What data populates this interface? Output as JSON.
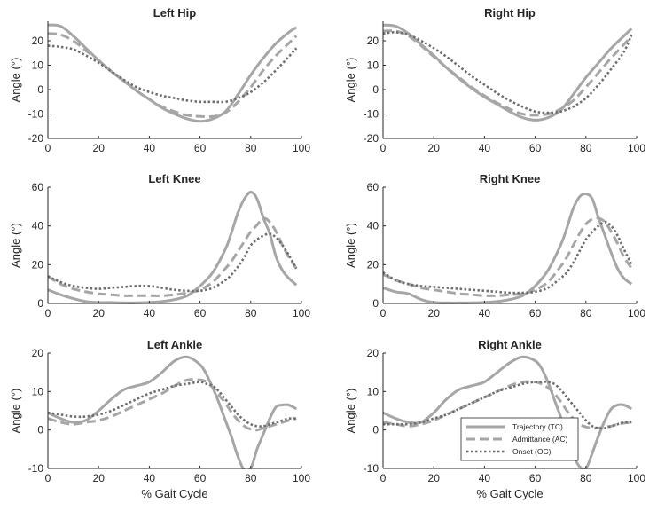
{
  "chart_data": [
    {
      "type": "line",
      "title": "Left Hip",
      "xlabel": "",
      "ylabel": "Angle (°)",
      "xlim": [
        0,
        100
      ],
      "ylim": [
        -20,
        28
      ],
      "xticks": [
        0,
        20,
        40,
        60,
        80,
        100
      ],
      "yticks": [
        -20,
        -10,
        0,
        10,
        20
      ],
      "x": [
        0,
        5,
        10,
        15,
        20,
        25,
        30,
        35,
        40,
        45,
        50,
        55,
        60,
        65,
        70,
        75,
        80,
        85,
        90,
        95,
        98
      ],
      "series": [
        {
          "name": "Trajectory (TC)",
          "values": [
            26.5,
            26,
            22,
            17,
            12,
            7.5,
            3.5,
            -0.5,
            -4,
            -7.5,
            -10,
            -12,
            -13,
            -12,
            -9,
            -2,
            6,
            13,
            19,
            23.5,
            25.5
          ]
        },
        {
          "name": "Admittance (AC)",
          "values": [
            23,
            22.5,
            20,
            16,
            12,
            7.5,
            3.5,
            -0.5,
            -4,
            -7,
            -9,
            -10.5,
            -11,
            -11,
            -9.5,
            -5,
            1,
            8,
            14,
            19,
            22
          ]
        },
        {
          "name": "Onset (OC)",
          "values": [
            18,
            17.5,
            16.5,
            14,
            11,
            7.5,
            4,
            1,
            -1,
            -2.5,
            -3.5,
            -4.5,
            -5,
            -5,
            -5,
            -3.5,
            -1,
            3,
            8,
            13.5,
            17
          ]
        }
      ]
    },
    {
      "type": "line",
      "title": "Right Hip",
      "xlabel": "",
      "ylabel": "Angle (°)",
      "xlim": [
        0,
        100
      ],
      "ylim": [
        -20,
        28
      ],
      "xticks": [
        0,
        20,
        40,
        60,
        80,
        100
      ],
      "yticks": [
        -20,
        -10,
        0,
        10,
        20
      ],
      "x": [
        0,
        5,
        10,
        15,
        20,
        25,
        30,
        35,
        40,
        45,
        50,
        55,
        60,
        65,
        70,
        75,
        80,
        85,
        90,
        95,
        98
      ],
      "series": [
        {
          "name": "Trajectory (TC)",
          "values": [
            26.5,
            26,
            23,
            18.5,
            14,
            9,
            4.5,
            0.5,
            -3,
            -6,
            -9,
            -11.5,
            -12.5,
            -11.5,
            -8.5,
            -2,
            5,
            11,
            17,
            22,
            25
          ]
        },
        {
          "name": "Admittance (AC)",
          "values": [
            24,
            24,
            22,
            18,
            13.5,
            9,
            5,
            1,
            -2.5,
            -5.5,
            -8,
            -10,
            -10.5,
            -10,
            -8,
            -4.5,
            1,
            7,
            13,
            18.5,
            22
          ]
        },
        {
          "name": "Onset (OC)",
          "values": [
            23,
            23.5,
            22.5,
            20,
            17,
            13.5,
            9.5,
            5.5,
            2,
            -1.5,
            -4.5,
            -7,
            -9,
            -9.5,
            -9,
            -7,
            -3.5,
            2,
            8.5,
            15.5,
            22.5
          ]
        }
      ]
    },
    {
      "type": "line",
      "title": "Left Knee",
      "xlabel": "",
      "ylabel": "Angle (°)",
      "xlim": [
        0,
        100
      ],
      "ylim": [
        0,
        60
      ],
      "xticks": [
        0,
        20,
        40,
        60,
        80,
        100
      ],
      "yticks": [
        0,
        20,
        40,
        60
      ],
      "x": [
        0,
        5,
        10,
        15,
        20,
        25,
        30,
        35,
        40,
        45,
        50,
        55,
        60,
        65,
        70,
        72.5,
        75,
        77.5,
        80,
        82.5,
        85,
        87.5,
        90,
        92.5,
        95,
        98
      ],
      "series": [
        {
          "name": "Trajectory (TC)",
          "values": [
            7,
            4.5,
            2.5,
            1,
            0.5,
            0.5,
            0.3,
            0.3,
            0.5,
            1,
            2,
            4,
            9,
            16,
            28,
            37,
            47,
            54,
            57.5,
            54,
            44,
            36,
            24,
            17,
            13,
            9.5
          ]
        },
        {
          "name": "Admittance (AC)",
          "values": [
            14,
            10,
            7.5,
            6,
            5,
            4.5,
            4,
            4,
            4,
            4,
            4.5,
            5.5,
            7,
            11,
            18,
            22,
            27,
            32,
            37,
            40.5,
            44,
            42,
            37,
            30,
            24,
            18
          ]
        },
        {
          "name": "Onset (OC)",
          "values": [
            14,
            11,
            9,
            8,
            7.5,
            8,
            8.5,
            9,
            9,
            8,
            7,
            6.5,
            6.5,
            8,
            12,
            15,
            19,
            24,
            30,
            33,
            35,
            36,
            34,
            30,
            25,
            18
          ]
        }
      ]
    },
    {
      "type": "line",
      "title": "Right Knee",
      "xlabel": "",
      "ylabel": "Angle (°)",
      "xlim": [
        0,
        100
      ],
      "ylim": [
        0,
        60
      ],
      "xticks": [
        0,
        20,
        40,
        60,
        80,
        100
      ],
      "yticks": [
        0,
        20,
        40,
        60
      ],
      "x": [
        0,
        5,
        10,
        15,
        20,
        25,
        30,
        35,
        40,
        45,
        50,
        55,
        60,
        65,
        70,
        72.5,
        75,
        77.5,
        80,
        82.5,
        85,
        87.5,
        90,
        92.5,
        95,
        98
      ],
      "series": [
        {
          "name": "Trajectory (TC)",
          "values": [
            8,
            6,
            5,
            2,
            0.5,
            0.3,
            0.3,
            0.3,
            0.5,
            1,
            2,
            4,
            9,
            17,
            30,
            39,
            49,
            55,
            56.5,
            54,
            44,
            35,
            26,
            18,
            13,
            10
          ]
        },
        {
          "name": "Admittance (AC)",
          "values": [
            15,
            12,
            10,
            8,
            7,
            6,
            5,
            4.5,
            4,
            4,
            4.5,
            5,
            7,
            11,
            19,
            24,
            30,
            36,
            41,
            43.5,
            44,
            42,
            37,
            31,
            24,
            18
          ]
        },
        {
          "name": "Onset (OC)",
          "values": [
            16,
            12,
            10,
            9,
            8.5,
            8,
            7.5,
            7,
            6.5,
            6,
            5.5,
            5.5,
            6,
            8,
            13,
            16,
            21,
            27,
            33,
            37,
            40,
            42,
            40,
            35,
            28,
            20
          ]
        }
      ]
    },
    {
      "type": "line",
      "title": "Left Ankle",
      "xlabel": "% Gait Cycle",
      "ylabel": "Angle (°)",
      "xlim": [
        0,
        100
      ],
      "ylim": [
        -10,
        20
      ],
      "xticks": [
        0,
        20,
        40,
        60,
        80,
        100
      ],
      "yticks": [
        -10,
        0,
        10,
        20
      ],
      "x": [
        0,
        5,
        10,
        15,
        20,
        25,
        30,
        35,
        40,
        45,
        50,
        55,
        60,
        62.5,
        65,
        67.5,
        70,
        72.5,
        75,
        77.5,
        80,
        82.5,
        85,
        87.5,
        90,
        92.5,
        95,
        98
      ],
      "series": [
        {
          "name": "Trajectory (TC)",
          "values": [
            4.5,
            3,
            2,
            2.5,
            5,
            8,
            10.5,
            11.5,
            12.5,
            15,
            18,
            19,
            17,
            14.5,
            11,
            7,
            2.5,
            -2,
            -7,
            -10.5,
            -10,
            -5,
            -1,
            3,
            6,
            6.5,
            6.5,
            5.5
          ]
        },
        {
          "name": "Admittance (AC)",
          "values": [
            3,
            2,
            1.5,
            2,
            2.5,
            3.5,
            5,
            6.5,
            8,
            9.5,
            11.5,
            13,
            13,
            12.5,
            11,
            9,
            7,
            4.5,
            2.5,
            1,
            0.2,
            0,
            0.5,
            1,
            1.5,
            2,
            2.5,
            3
          ]
        },
        {
          "name": "Onset (OC)",
          "values": [
            4.5,
            4,
            3.5,
            3.5,
            4,
            5,
            6.5,
            8,
            9.5,
            10.5,
            11.5,
            12,
            12.5,
            12,
            11.5,
            10,
            8,
            6,
            4,
            2.5,
            1.5,
            1,
            1,
            1.5,
            2,
            2.5,
            3,
            3
          ]
        }
      ]
    },
    {
      "type": "line",
      "title": "Right Ankle",
      "xlabel": "% Gait Cycle",
      "ylabel": "Angle (°)",
      "xlim": [
        0,
        100
      ],
      "ylim": [
        -10,
        20
      ],
      "xticks": [
        0,
        20,
        40,
        60,
        80,
        100
      ],
      "yticks": [
        -10,
        0,
        10,
        20
      ],
      "legend": {
        "location": "lower-right",
        "entries": [
          "Trajectory (TC)",
          "Admittance (AC)",
          "Onset (OC)"
        ]
      },
      "x": [
        0,
        5,
        10,
        15,
        20,
        25,
        30,
        35,
        40,
        45,
        50,
        55,
        60,
        62.5,
        65,
        67.5,
        70,
        72.5,
        75,
        77.5,
        80,
        82.5,
        85,
        87.5,
        90,
        92.5,
        95,
        98
      ],
      "series": [
        {
          "name": "Trajectory (TC)",
          "values": [
            4.5,
            3,
            2,
            2,
            4.5,
            8,
            10.5,
            11.5,
            12.5,
            15,
            17.5,
            19,
            18,
            16,
            12.5,
            8,
            3.5,
            -1.5,
            -6.5,
            -9.5,
            -10,
            -6,
            -1.5,
            2.5,
            5.5,
            6.5,
            6.5,
            5.5
          ]
        },
        {
          "name": "Admittance (AC)",
          "values": [
            2,
            1.5,
            1,
            1.5,
            2.5,
            4,
            5.5,
            7,
            8.5,
            10,
            11.5,
            12.5,
            12.5,
            12,
            11,
            9.5,
            7.5,
            5,
            3,
            1.5,
            0.8,
            0.5,
            0.5,
            0.8,
            1,
            1.5,
            1.8,
            2
          ]
        },
        {
          "name": "Onset (OC)",
          "values": [
            1.5,
            1.5,
            1.5,
            2,
            3,
            4,
            5.5,
            7,
            8.5,
            10,
            11,
            12,
            12.5,
            12.5,
            12.5,
            12,
            10.5,
            8.5,
            6.5,
            4.5,
            2.5,
            1,
            0.5,
            0.5,
            1,
            1.5,
            2,
            2
          ]
        }
      ]
    }
  ],
  "colors": {
    "trajectory": "#a6a6a6",
    "admittance": "#a6a6a6",
    "onset": "#6e6e6e",
    "axis": "#262626"
  }
}
